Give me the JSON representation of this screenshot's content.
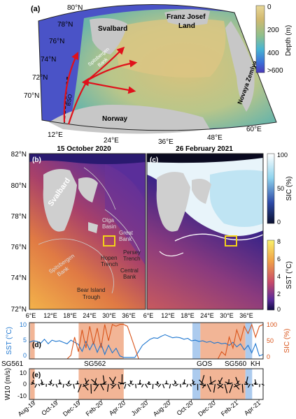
{
  "panel_a": {
    "tag": "(a)",
    "lat_labels": [
      "80°N",
      "78°N",
      "76°N",
      "74°N",
      "72°N",
      "70°N"
    ],
    "lon_labels": [
      "12°E",
      "24°E",
      "36°E",
      "48°E",
      "60°E"
    ],
    "places": [
      "Svalbard",
      "Franz Josef",
      "Land",
      "Novaya Zemlya",
      "Norway",
      "Spitsbergen",
      "Bank",
      "BSO"
    ],
    "colorbar": {
      "label": "Depth (m)",
      "ticks": [
        "0",
        "200",
        "400",
        ">600"
      ],
      "colors": [
        "#e8d898",
        "#d2b96f",
        "#8fbf8c",
        "#49b5d2",
        "#3c6fd8",
        "#4a39b8"
      ]
    },
    "arrow_color": "#e0111b"
  },
  "panel_b": {
    "tag": "(b)",
    "title": "15 October 2020",
    "y_ticks": [
      "82°N",
      "80°N",
      "78°N",
      "76°N",
      "74°N",
      "72°N"
    ],
    "x_ticks": [
      "6°E",
      "12°E",
      "18°E",
      "24°E",
      "30°E",
      "36°E"
    ],
    "labels": {
      "svalbard": "Svalbard",
      "olga1": "Olga",
      "olga2": "Basin",
      "great1": "Great",
      "great2": "Bank",
      "spits1": "Spitsbergen",
      "spits2": "Bank",
      "hopen1": "Hopen",
      "hopen2": "Trench",
      "persey1": "Persey",
      "persey2": "Trench",
      "central1": "Central",
      "central2": "Bank",
      "bear1": "Bear Island",
      "bear2": "Trough"
    }
  },
  "panel_c": {
    "tag": "(c)",
    "title": "26 February 2021",
    "x_ticks": [
      "6°E",
      "12°E",
      "18°E",
      "24°E",
      "30°E",
      "36°E"
    ],
    "sic_colorbar": {
      "label": "SIC (%)",
      "ticks": [
        "100",
        "50",
        "0"
      ]
    },
    "sst_colorbar": {
      "label": "SST (°C)",
      "ticks": [
        "8",
        "6",
        "4",
        "2",
        "0"
      ]
    }
  },
  "chart_data": [
    {
      "type": "line",
      "panel": "(d)",
      "ylabel_left": "SST (°C)",
      "ylabel_right": "SIC (%)",
      "left_ticks": [
        "10",
        "5",
        "0"
      ],
      "right_ticks": [
        "100",
        "50",
        "0"
      ],
      "ylim_left": [
        -2,
        10
      ],
      "ylim_right": [
        0,
        100
      ],
      "series": [
        {
          "name": "SST (°C)",
          "color": "#1f77d0",
          "values": [
            3.5,
            4.0,
            3.8,
            3.2,
            4.5,
            3.0,
            4.2,
            3.8,
            4.0,
            3.5,
            3.0,
            4.2,
            3.5,
            2.8,
            0.5,
            3.8,
            1.0,
            3.5,
            0.2,
            3.0,
            -0.5,
            2.5,
            0.0,
            1.5,
            -1.0,
            -1.5,
            -1.5,
            -1.5,
            -1.5,
            0.5,
            2.5,
            3.5,
            4.5,
            5.0,
            4.8,
            5.5,
            6.0,
            5.5,
            5.0,
            5.2,
            5.0,
            4.5,
            4.8,
            4.0,
            4.2,
            3.8,
            4.0,
            3.5,
            3.8,
            3.2,
            3.5,
            3.0,
            3.2,
            2.5,
            3.5,
            2.0,
            3.0,
            1.0,
            2.5,
            0.0,
            3.0,
            -1.0,
            -0.5
          ]
        },
        {
          "name": "SIC (%)",
          "color": "#d9541a",
          "values": [
            0,
            0,
            0,
            0,
            0,
            0,
            0,
            0,
            0,
            0,
            0,
            10,
            60,
            20,
            80,
            30,
            90,
            40,
            85,
            30,
            95,
            50,
            95,
            90,
            95,
            95,
            90,
            60,
            30,
            0,
            0,
            0,
            0,
            0,
            0,
            0,
            0,
            0,
            0,
            0,
            0,
            0,
            0,
            0,
            0,
            0,
            0,
            0,
            0,
            0,
            0,
            20,
            10,
            60,
            30,
            80,
            50,
            90,
            70,
            95,
            60,
            90,
            95
          ]
        }
      ]
    },
    {
      "type": "quiver",
      "panel": "(e)",
      "ylabel": "W10 (m/s)",
      "y_ticks": [
        "10",
        "0",
        "-10"
      ],
      "ylim": [
        -15,
        15
      ],
      "x_ticks": [
        "Aug-19",
        "Oct-19",
        "Dec-19",
        "Feb-20",
        "Apr-20",
        "Jun-20",
        "Aug-20",
        "Oct-20",
        "Dec-20",
        "Feb-21",
        "Apr-21"
      ],
      "deployments": [
        {
          "label": "SG561",
          "from": "Aug-19",
          "to": "Aug-19"
        },
        {
          "label": "SG562",
          "from": "Dec-19",
          "to": "Apr-20"
        },
        {
          "label": "GOS",
          "from": "Oct-20",
          "to": "Oct-20"
        },
        {
          "label": "SG560",
          "from": "Nov-20",
          "to": "Mar-21"
        },
        {
          "label": "KH",
          "from": "Mar-21",
          "to": "Mar-21"
        }
      ],
      "shade_colors": {
        "glider": "#f0a884",
        "other": "#9ec2eb"
      }
    }
  ]
}
